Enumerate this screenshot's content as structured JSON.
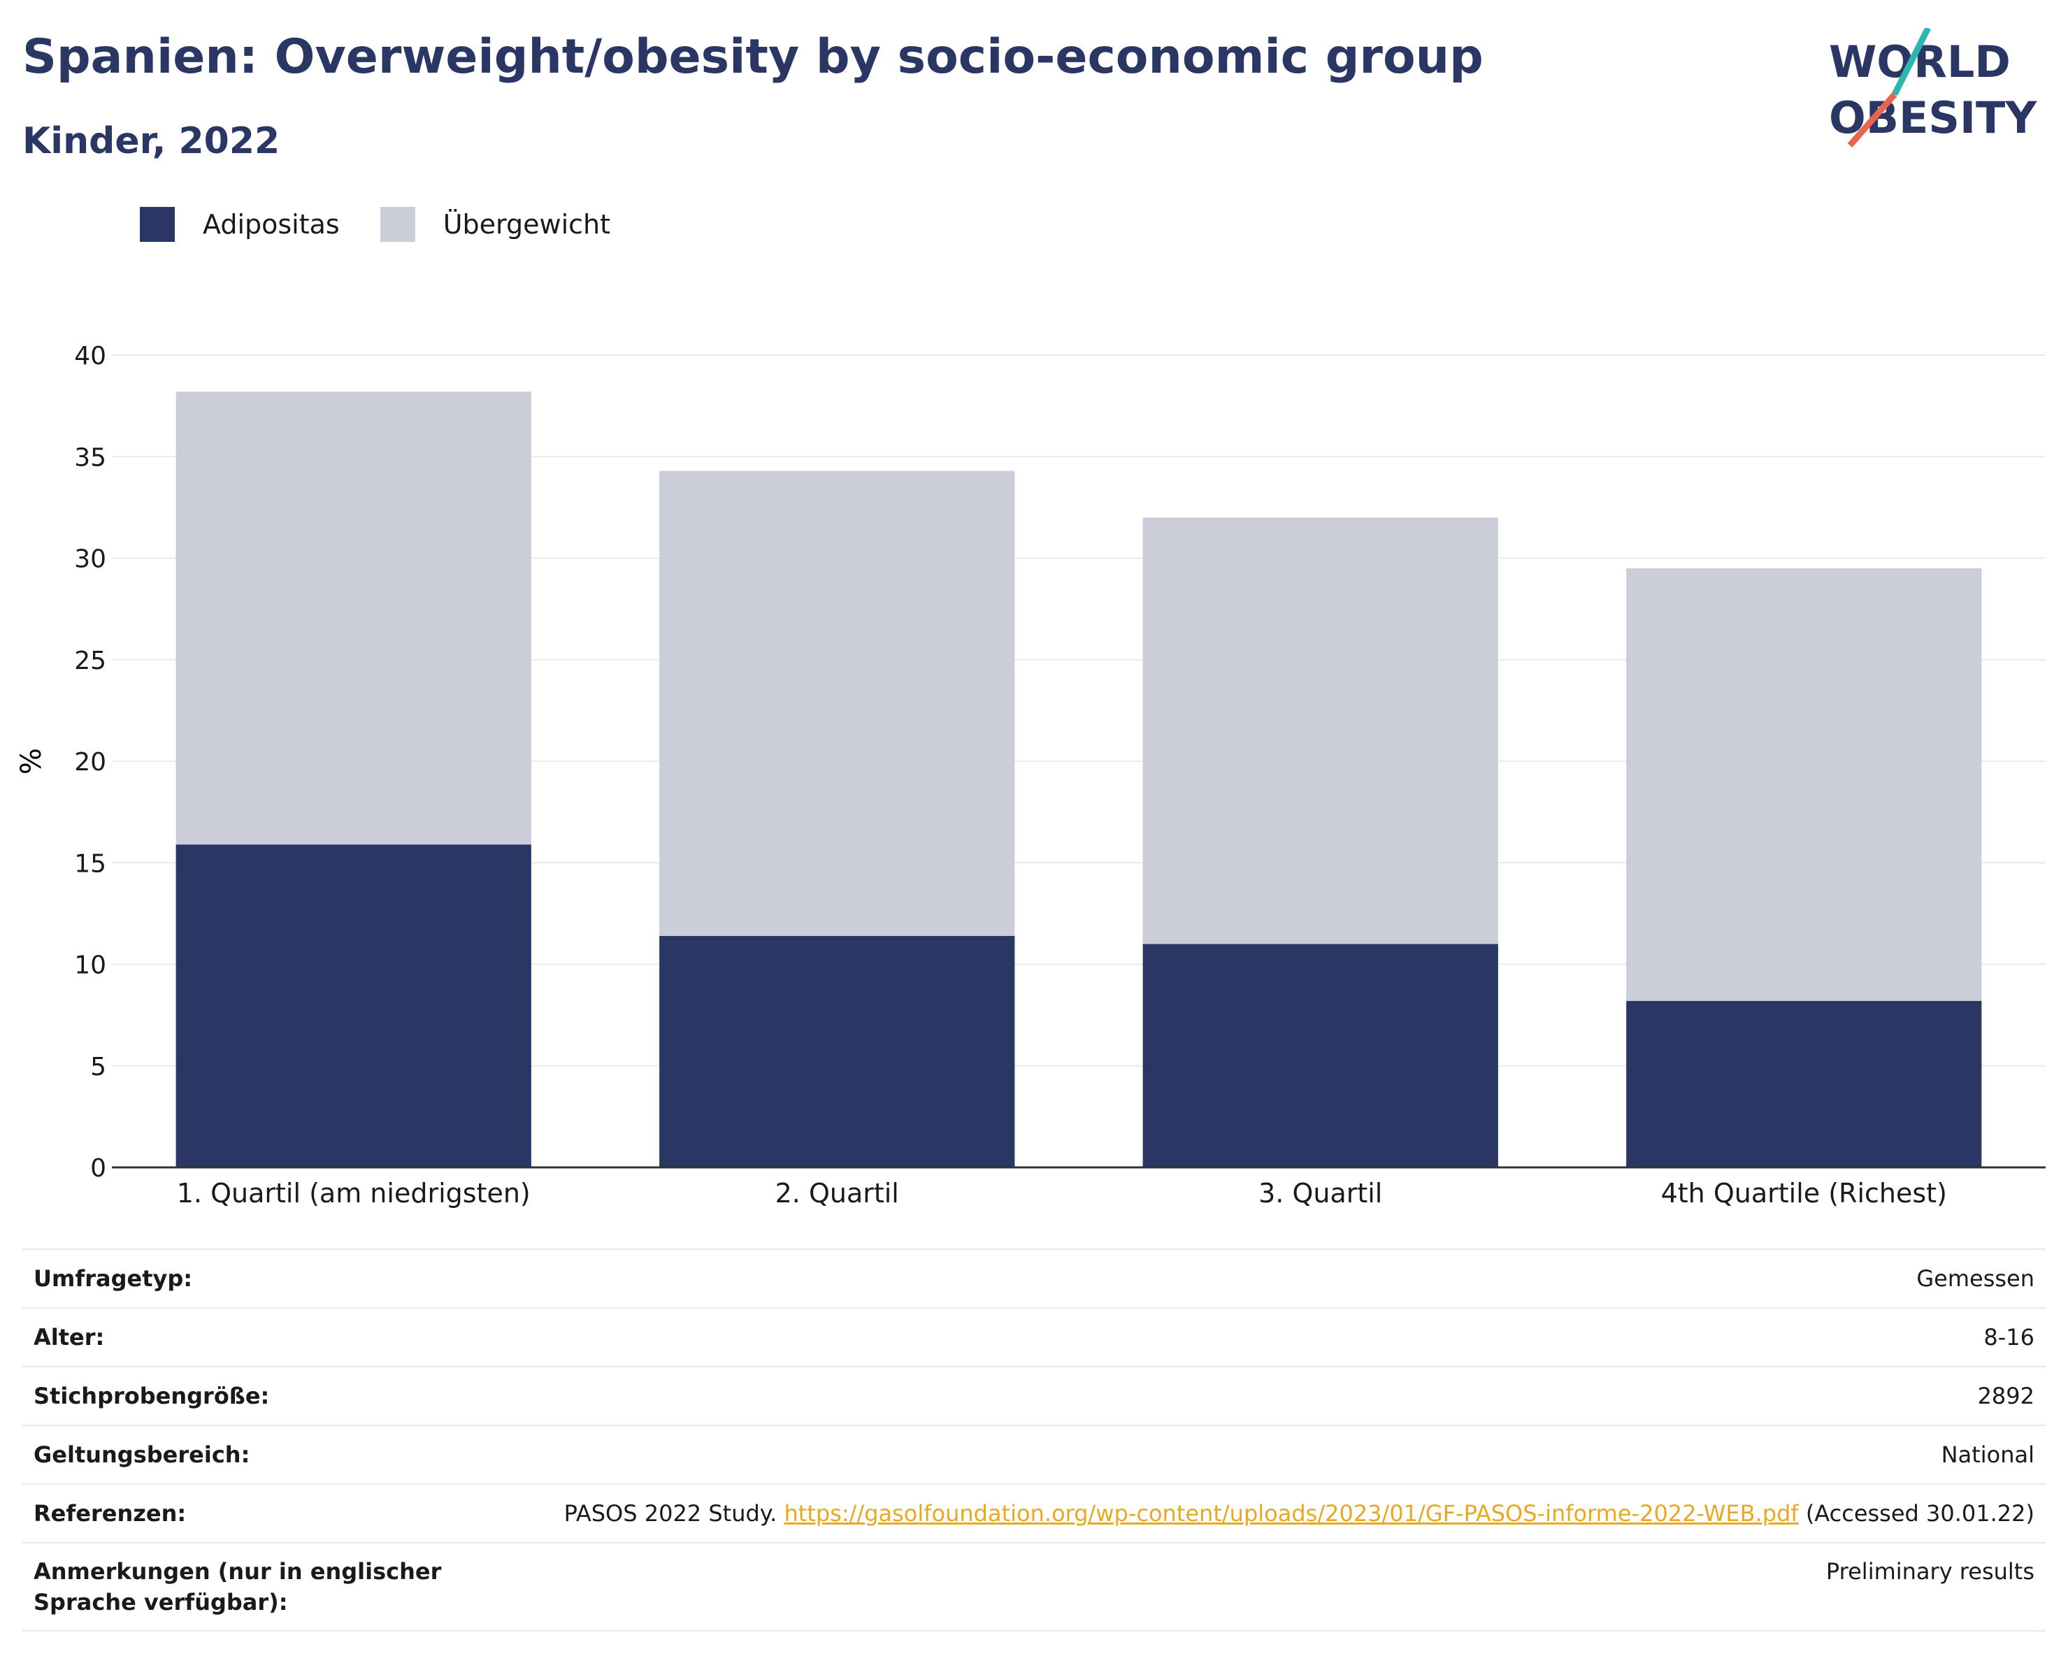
{
  "header": {
    "title": "Spanien: Overweight/obesity by socio-economic group",
    "subtitle": "Kinder, 2022"
  },
  "logo": {
    "line1": "WORLD",
    "line2": "OBESITY"
  },
  "colors": {
    "obesity": "#2a3663",
    "overweight": "#cbcdd8",
    "link": "#e7a921",
    "logo_teal": "#2fb5ad",
    "logo_coral": "#e8654f"
  },
  "chart_data": {
    "type": "bar",
    "stacked": true,
    "categories": [
      "1. Quartil (am niedrigsten)",
      "2. Quartil",
      "3. Quartil",
      "4th Quartile (Richest)"
    ],
    "series": [
      {
        "name": "Adipositas",
        "values": [
          15.9,
          11.4,
          11.0,
          8.2
        ]
      },
      {
        "name": "Übergewicht",
        "values": [
          22.3,
          22.9,
          21.0,
          21.3
        ]
      }
    ],
    "ylabel": "%",
    "ylim": [
      0,
      40
    ],
    "yticks": [
      0,
      5,
      10,
      15,
      20,
      25,
      30,
      35,
      40
    ],
    "grid": true,
    "legend_position": "top-left"
  },
  "meta": [
    {
      "label": "Umfragetyp:",
      "value": "Gemessen"
    },
    {
      "label": "Alter:",
      "value": "8-16"
    },
    {
      "label": "Stichprobengröße:",
      "value": "2892"
    },
    {
      "label": "Geltungsbereich:",
      "value": "National"
    },
    {
      "label": "Referenzen:",
      "value_prefix": "PASOS 2022 Study. ",
      "link": "https://gasolfoundation.org/wp-content/uploads/2023/01/GF-PASOS-informe-2022-WEB.pdf",
      "value_suffix": " (Accessed 30.01.22)"
    },
    {
      "label": "Anmerkungen (nur in englischer Sprache verfügbar):",
      "value": "Preliminary results"
    }
  ]
}
